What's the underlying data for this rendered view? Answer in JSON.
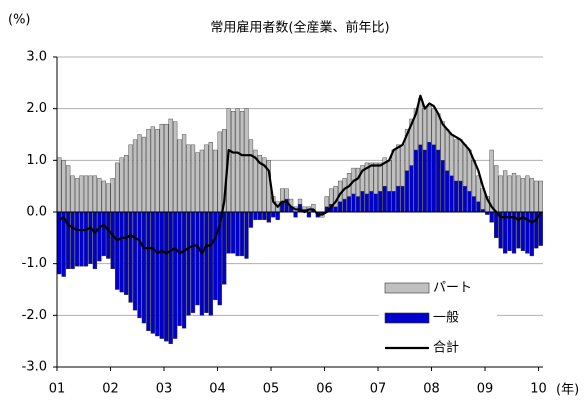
{
  "chart_data": {
    "type": "bar",
    "title": "常用雇用者数(全産業、前年比)",
    "y_label": "(%)",
    "x_label": "(年)",
    "stacked": true,
    "legend": "lower right",
    "grid": true,
    "categories": [
      "01",
      null,
      null,
      null,
      null,
      null,
      null,
      null,
      null,
      null,
      null,
      null,
      "02",
      null,
      null,
      null,
      null,
      null,
      null,
      null,
      null,
      null,
      null,
      null,
      "03",
      null,
      null,
      null,
      null,
      null,
      null,
      null,
      null,
      null,
      null,
      null,
      "04",
      null,
      null,
      null,
      null,
      null,
      null,
      null,
      null,
      null,
      null,
      null,
      "05",
      null,
      null,
      null,
      null,
      null,
      null,
      null,
      null,
      null,
      null,
      null,
      "06",
      null,
      null,
      null,
      null,
      null,
      null,
      null,
      null,
      null,
      null,
      null,
      "07",
      null,
      null,
      null,
      null,
      null,
      null,
      null,
      null,
      null,
      null,
      null,
      "08",
      null,
      null,
      null,
      null,
      null,
      null,
      null,
      null,
      null,
      null,
      null,
      "09",
      null,
      null,
      null,
      null,
      null,
      null,
      null,
      null,
      null,
      null,
      null,
      "10"
    ],
    "ylim": [
      -3,
      3
    ],
    "yticks": [
      {
        "value": -3,
        "label": "-3.0"
      },
      {
        "value": -2,
        "label": "-2.0"
      },
      {
        "value": -1,
        "label": "-1.0"
      },
      {
        "value": 0,
        "label": "0.0"
      },
      {
        "value": 1,
        "label": "1.0"
      },
      {
        "value": 2,
        "label": "2.0"
      },
      {
        "value": 3,
        "label": "3.0"
      }
    ],
    "series": [
      {
        "name": "パート",
        "color": "#c0c0c0",
        "values": [
          1.05,
          1.0,
          0.9,
          0.7,
          0.65,
          0.7,
          0.7,
          0.7,
          0.7,
          0.65,
          0.6,
          0.55,
          0.65,
          0.95,
          1.05,
          1.1,
          1.3,
          1.4,
          1.5,
          1.45,
          1.6,
          1.65,
          1.6,
          1.7,
          1.7,
          1.8,
          1.75,
          1.4,
          1.5,
          1.3,
          1.3,
          1.15,
          1.2,
          1.3,
          1.35,
          1.2,
          1.55,
          1.6,
          2.0,
          1.95,
          2.0,
          1.95,
          2.0,
          1.4,
          1.2,
          1.1,
          1.05,
          1.0,
          0.3,
          0.2,
          0.25,
          0.2,
          0.15,
          0.1,
          0.1,
          0.05,
          0.1,
          0.1,
          0.0,
          -0.05,
          0.2,
          0.3,
          0.4,
          0.4,
          0.4,
          0.45,
          0.5,
          0.55,
          0.5,
          0.6,
          0.55,
          0.6,
          0.55,
          0.55,
          0.6,
          0.8,
          0.8,
          0.8,
          0.8,
          0.9,
          0.8,
          0.9,
          0.8,
          0.7,
          0.7,
          0.7,
          0.75,
          0.8,
          0.8,
          0.8,
          0.8,
          0.8,
          0.8,
          0.7,
          0.5,
          0.4,
          0.3,
          1.2,
          0.9,
          0.7,
          0.8,
          0.7,
          0.75,
          0.7,
          0.65,
          0.7,
          0.65,
          0.6,
          0.6
        ]
      },
      {
        "name": "一般",
        "color": "#0000cc",
        "values": [
          -1.2,
          -1.25,
          -1.1,
          -1.1,
          -1.05,
          -1.05,
          -1.05,
          -1.0,
          -1.1,
          -0.95,
          -0.85,
          -0.9,
          -1.1,
          -1.5,
          -1.55,
          -1.6,
          -1.75,
          -1.9,
          -2.05,
          -2.15,
          -2.3,
          -2.35,
          -2.4,
          -2.45,
          -2.5,
          -2.55,
          -2.45,
          -2.2,
          -2.25,
          -2.0,
          -1.95,
          -1.8,
          -2.0,
          -1.95,
          -2.0,
          -1.7,
          -1.8,
          -1.4,
          -0.8,
          -0.8,
          -0.85,
          -0.85,
          -0.9,
          -0.3,
          -0.15,
          -0.15,
          -0.15,
          -0.2,
          -0.1,
          -0.15,
          0.2,
          0.25,
          0.1,
          -0.1,
          0.15,
          0.05,
          -0.1,
          0.05,
          -0.1,
          -0.05,
          0.1,
          0.15,
          0.1,
          0.2,
          0.25,
          0.3,
          0.35,
          0.3,
          0.4,
          0.35,
          0.4,
          0.35,
          0.4,
          0.5,
          0.4,
          0.4,
          0.5,
          0.5,
          0.8,
          0.9,
          1.2,
          1.3,
          1.2,
          1.35,
          1.3,
          1.2,
          1.0,
          0.8,
          0.7,
          0.6,
          0.6,
          0.5,
          0.4,
          0.3,
          0.2,
          0.05,
          -0.05,
          -0.2,
          -0.5,
          -0.7,
          -0.8,
          -0.75,
          -0.8,
          -0.7,
          -0.75,
          -0.8,
          -0.85,
          -0.7,
          -0.65
        ]
      },
      {
        "name": "合計",
        "type": "line",
        "color": "#000000",
        "values": [
          -0.15,
          -0.1,
          -0.25,
          -0.3,
          -0.35,
          -0.35,
          -0.35,
          -0.3,
          -0.4,
          -0.3,
          -0.25,
          -0.35,
          -0.45,
          -0.55,
          -0.5,
          -0.5,
          -0.45,
          -0.5,
          -0.55,
          -0.7,
          -0.7,
          -0.7,
          -0.8,
          -0.75,
          -0.8,
          -0.75,
          -0.7,
          -0.8,
          -0.75,
          -0.7,
          -0.65,
          -0.65,
          -0.8,
          -0.65,
          -0.65,
          -0.5,
          -0.25,
          0.2,
          1.2,
          1.15,
          1.15,
          1.1,
          1.1,
          1.1,
          1.05,
          0.95,
          0.9,
          0.8,
          0.2,
          0.1,
          0.2,
          0.2,
          0.1,
          0.05,
          0.05,
          0.0,
          0.05,
          0.05,
          -0.05,
          -0.05,
          0.0,
          0.1,
          0.2,
          0.35,
          0.45,
          0.5,
          0.6,
          0.65,
          0.8,
          0.85,
          0.9,
          0.9,
          0.9,
          0.95,
          1.0,
          1.2,
          1.25,
          1.3,
          1.5,
          1.7,
          1.9,
          2.25,
          2.0,
          2.1,
          2.05,
          1.9,
          1.7,
          1.6,
          1.5,
          1.45,
          1.4,
          1.3,
          1.2,
          1.0,
          0.8,
          0.5,
          0.25,
          0.1,
          0.0,
          -0.1,
          -0.1,
          -0.1,
          -0.1,
          -0.15,
          -0.1,
          -0.15,
          -0.2,
          -0.15,
          0.0
        ]
      }
    ]
  }
}
